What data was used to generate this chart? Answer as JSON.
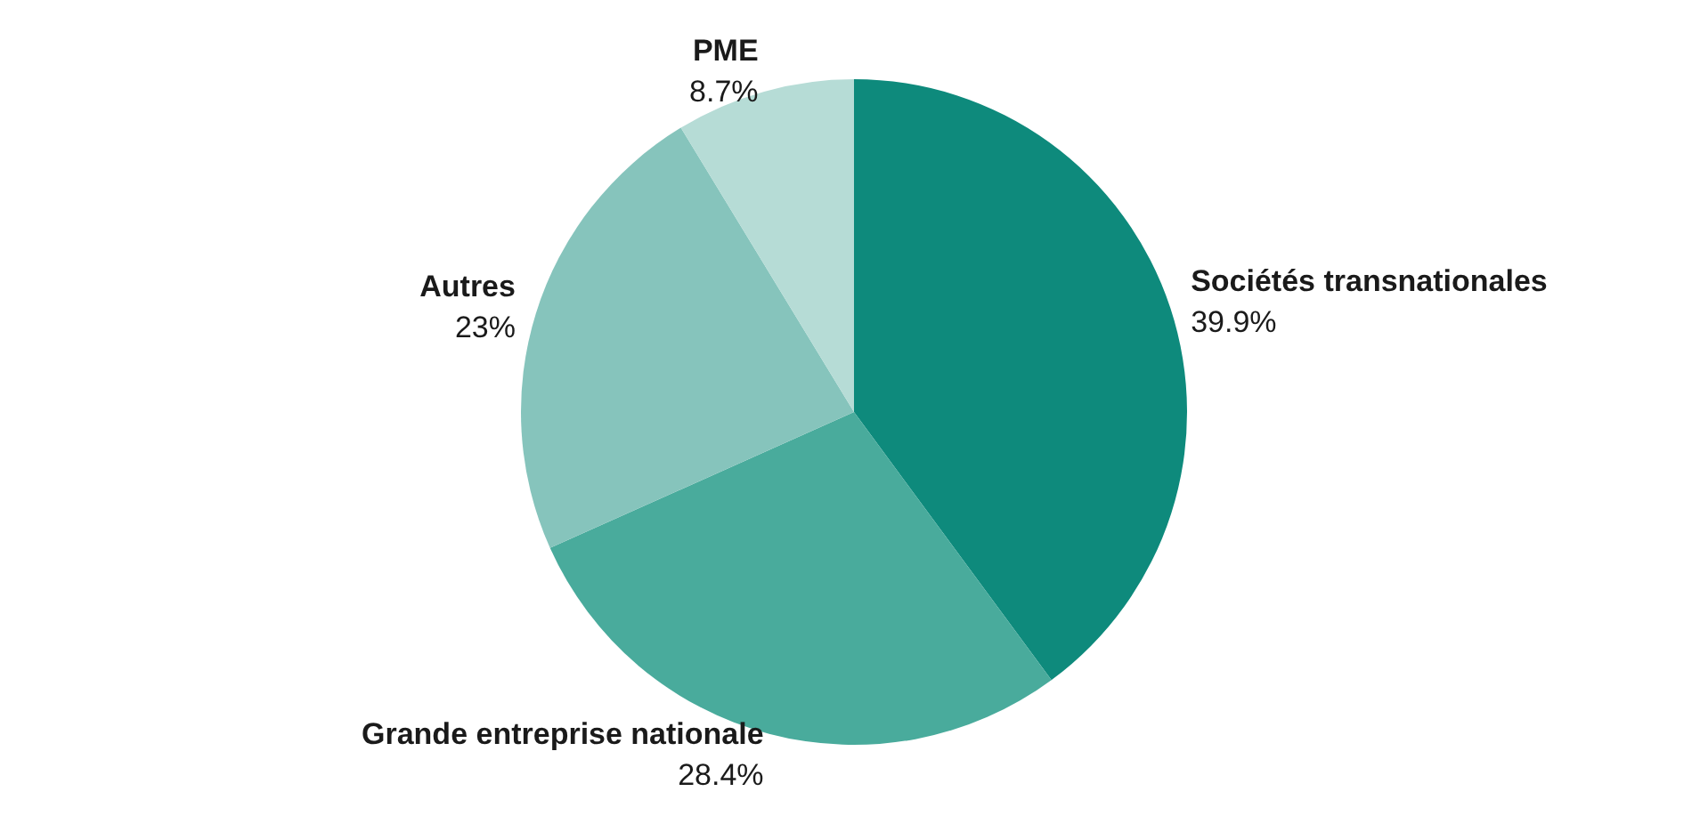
{
  "chart_data": {
    "type": "pie",
    "categories": [
      "Sociétés transnationales",
      "Grande entreprise nationale",
      "Autres",
      "PME"
    ],
    "values": [
      39.9,
      28.4,
      23,
      8.7
    ],
    "value_labels": [
      "39.9%",
      "28.4%",
      "23%",
      "8.7%"
    ],
    "colors": [
      "#0e8a7c",
      "#49ab9c",
      "#86c4bc",
      "#b6dcd6"
    ]
  }
}
